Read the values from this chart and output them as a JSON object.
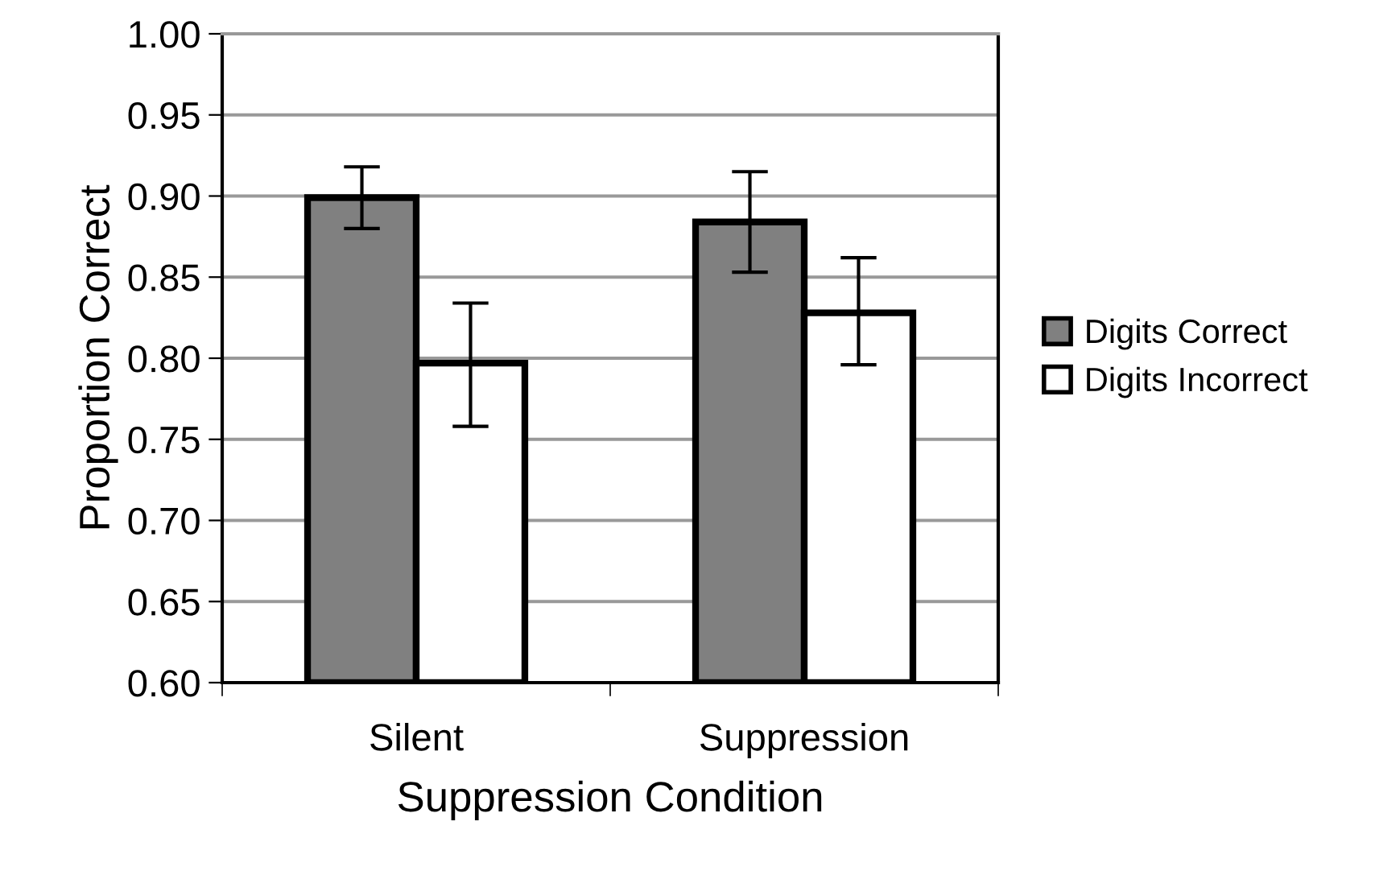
{
  "chart_data": {
    "type": "bar",
    "xlabel": "Suppression Condition",
    "ylabel": "Proportion Correct",
    "categories": [
      "Silent",
      "Suppression"
    ],
    "series": [
      {
        "name": "Digits Correct",
        "color": "#808080",
        "values": [
          0.899,
          0.884
        ],
        "errors": [
          0.019,
          0.031
        ]
      },
      {
        "name": "Digits Incorrect",
        "color": "#ffffff",
        "values": [
          0.797,
          0.828
        ],
        "errors": [
          [
            0.758,
            0.834
          ],
          [
            0.796,
            0.862
          ]
        ]
      }
    ],
    "ylim": [
      0.6,
      1.0
    ],
    "yticks": [
      {
        "value": 0.6,
        "label": "0.60"
      },
      {
        "value": 0.65,
        "label": "0.65"
      },
      {
        "value": 0.7,
        "label": "0.70"
      },
      {
        "value": 0.75,
        "label": "0.75"
      },
      {
        "value": 0.8,
        "label": "0.80"
      },
      {
        "value": 0.85,
        "label": "0.85"
      },
      {
        "value": 0.9,
        "label": "0.90"
      },
      {
        "value": 0.95,
        "label": "0.95"
      },
      {
        "value": 1.0,
        "label": "1.00"
      }
    ],
    "grid": "y",
    "legend": "right"
  }
}
